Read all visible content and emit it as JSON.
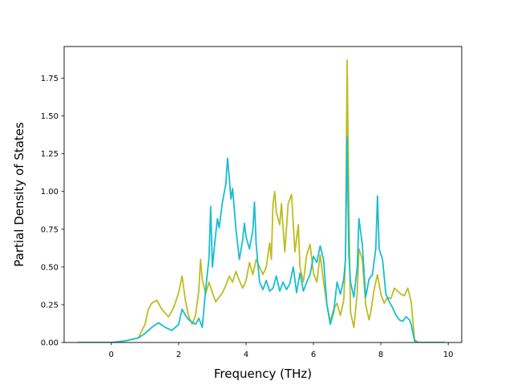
{
  "chart_data": {
    "type": "line",
    "title": "",
    "xlabel": "Frequency (THz)",
    "ylabel": "Partial Density of States",
    "xlim": [
      -1.4,
      10.4
    ],
    "ylim": [
      0,
      1.96
    ],
    "x_ticks": [
      0,
      2,
      4,
      6,
      8,
      10
    ],
    "x_tick_labels": [
      "0",
      "2",
      "4",
      "6",
      "8",
      "10"
    ],
    "y_ticks": [
      0.0,
      0.25,
      0.5,
      0.75,
      1.0,
      1.25,
      1.5,
      1.75
    ],
    "y_tick_labels": [
      "0.00",
      "0.25",
      "0.50",
      "0.75",
      "1.00",
      "1.25",
      "1.50",
      "1.75"
    ],
    "grid": false,
    "legend": "none",
    "series": [
      {
        "color": "#bcbd22",
        "points": [
          [
            -1.0,
            0
          ],
          [
            0.0,
            0
          ],
          [
            0.4,
            0.01
          ],
          [
            0.8,
            0.03
          ],
          [
            1.0,
            0.12
          ],
          [
            1.1,
            0.22
          ],
          [
            1.2,
            0.26
          ],
          [
            1.35,
            0.28
          ],
          [
            1.5,
            0.22
          ],
          [
            1.7,
            0.17
          ],
          [
            1.85,
            0.23
          ],
          [
            2.0,
            0.33
          ],
          [
            2.1,
            0.44
          ],
          [
            2.2,
            0.28
          ],
          [
            2.3,
            0.17
          ],
          [
            2.4,
            0.12
          ],
          [
            2.5,
            0.18
          ],
          [
            2.6,
            0.35
          ],
          [
            2.65,
            0.55
          ],
          [
            2.7,
            0.42
          ],
          [
            2.8,
            0.32
          ],
          [
            2.9,
            0.4
          ],
          [
            3.0,
            0.33
          ],
          [
            3.1,
            0.27
          ],
          [
            3.2,
            0.3
          ],
          [
            3.3,
            0.33
          ],
          [
            3.4,
            0.38
          ],
          [
            3.5,
            0.44
          ],
          [
            3.6,
            0.4
          ],
          [
            3.7,
            0.47
          ],
          [
            3.8,
            0.41
          ],
          [
            3.9,
            0.36
          ],
          [
            4.0,
            0.41
          ],
          [
            4.1,
            0.53
          ],
          [
            4.2,
            0.45
          ],
          [
            4.3,
            0.55
          ],
          [
            4.4,
            0.5
          ],
          [
            4.5,
            0.45
          ],
          [
            4.6,
            0.5
          ],
          [
            4.7,
            0.66
          ],
          [
            4.75,
            0.55
          ],
          [
            4.8,
            0.92
          ],
          [
            4.85,
            1.0
          ],
          [
            4.9,
            0.86
          ],
          [
            5.0,
            0.78
          ],
          [
            5.05,
            0.92
          ],
          [
            5.15,
            0.6
          ],
          [
            5.25,
            0.92
          ],
          [
            5.35,
            0.98
          ],
          [
            5.45,
            0.6
          ],
          [
            5.55,
            0.78
          ],
          [
            5.6,
            0.5
          ],
          [
            5.7,
            0.4
          ],
          [
            5.8,
            0.58
          ],
          [
            5.9,
            0.65
          ],
          [
            6.0,
            0.46
          ],
          [
            6.1,
            0.4
          ],
          [
            6.2,
            0.58
          ],
          [
            6.3,
            0.4
          ],
          [
            6.4,
            0.25
          ],
          [
            6.5,
            0.14
          ],
          [
            6.6,
            0.22
          ],
          [
            6.7,
            0.26
          ],
          [
            6.8,
            0.18
          ],
          [
            6.9,
            0.28
          ],
          [
            6.95,
            0.55
          ],
          [
            7.0,
            1.87
          ],
          [
            7.05,
            0.9
          ],
          [
            7.1,
            0.2
          ],
          [
            7.2,
            0.1
          ],
          [
            7.3,
            0.33
          ],
          [
            7.35,
            0.62
          ],
          [
            7.45,
            0.55
          ],
          [
            7.55,
            0.25
          ],
          [
            7.65,
            0.15
          ],
          [
            7.7,
            0.2
          ],
          [
            7.8,
            0.35
          ],
          [
            7.9,
            0.45
          ],
          [
            8.0,
            0.32
          ],
          [
            8.1,
            0.26
          ],
          [
            8.2,
            0.3
          ],
          [
            8.3,
            0.29
          ],
          [
            8.4,
            0.36
          ],
          [
            8.5,
            0.34
          ],
          [
            8.6,
            0.32
          ],
          [
            8.7,
            0.31
          ],
          [
            8.8,
            0.36
          ],
          [
            8.9,
            0.27
          ],
          [
            9.0,
            0.02
          ],
          [
            9.1,
            0.0
          ],
          [
            9.9,
            0.0
          ]
        ]
      },
      {
        "color": "#17becf",
        "points": [
          [
            -1.0,
            0
          ],
          [
            0.0,
            0
          ],
          [
            0.4,
            0.01
          ],
          [
            0.8,
            0.03
          ],
          [
            1.0,
            0.06
          ],
          [
            1.2,
            0.1
          ],
          [
            1.4,
            0.13
          ],
          [
            1.6,
            0.1
          ],
          [
            1.8,
            0.08
          ],
          [
            2.0,
            0.12
          ],
          [
            2.1,
            0.22
          ],
          [
            2.2,
            0.18
          ],
          [
            2.3,
            0.15
          ],
          [
            2.5,
            0.12
          ],
          [
            2.6,
            0.16
          ],
          [
            2.7,
            0.1
          ],
          [
            2.8,
            0.35
          ],
          [
            2.9,
            0.56
          ],
          [
            2.95,
            0.9
          ],
          [
            3.0,
            0.5
          ],
          [
            3.1,
            0.72
          ],
          [
            3.15,
            0.82
          ],
          [
            3.2,
            0.76
          ],
          [
            3.3,
            0.93
          ],
          [
            3.4,
            1.05
          ],
          [
            3.45,
            1.22
          ],
          [
            3.5,
            1.1
          ],
          [
            3.55,
            0.95
          ],
          [
            3.6,
            1.02
          ],
          [
            3.7,
            0.75
          ],
          [
            3.8,
            0.55
          ],
          [
            3.9,
            0.68
          ],
          [
            3.95,
            0.79
          ],
          [
            4.0,
            0.7
          ],
          [
            4.1,
            0.62
          ],
          [
            4.2,
            0.74
          ],
          [
            4.25,
            0.93
          ],
          [
            4.3,
            0.65
          ],
          [
            4.4,
            0.4
          ],
          [
            4.5,
            0.35
          ],
          [
            4.6,
            0.41
          ],
          [
            4.7,
            0.34
          ],
          [
            4.8,
            0.36
          ],
          [
            4.9,
            0.44
          ],
          [
            5.0,
            0.34
          ],
          [
            5.1,
            0.4
          ],
          [
            5.2,
            0.35
          ],
          [
            5.3,
            0.39
          ],
          [
            5.4,
            0.5
          ],
          [
            5.5,
            0.33
          ],
          [
            5.6,
            0.46
          ],
          [
            5.7,
            0.34
          ],
          [
            5.8,
            0.4
          ],
          [
            5.9,
            0.45
          ],
          [
            6.0,
            0.57
          ],
          [
            6.1,
            0.53
          ],
          [
            6.2,
            0.64
          ],
          [
            6.3,
            0.55
          ],
          [
            6.4,
            0.25
          ],
          [
            6.5,
            0.12
          ],
          [
            6.6,
            0.2
          ],
          [
            6.7,
            0.4
          ],
          [
            6.8,
            0.32
          ],
          [
            6.9,
            0.42
          ],
          [
            6.95,
            0.55
          ],
          [
            7.0,
            1.36
          ],
          [
            7.05,
            0.58
          ],
          [
            7.1,
            0.4
          ],
          [
            7.2,
            0.3
          ],
          [
            7.3,
            0.5
          ],
          [
            7.35,
            0.82
          ],
          [
            7.45,
            0.65
          ],
          [
            7.55,
            0.3
          ],
          [
            7.65,
            0.42
          ],
          [
            7.75,
            0.45
          ],
          [
            7.85,
            0.62
          ],
          [
            7.9,
            0.97
          ],
          [
            7.95,
            0.62
          ],
          [
            8.05,
            0.55
          ],
          [
            8.15,
            0.32
          ],
          [
            8.25,
            0.27
          ],
          [
            8.35,
            0.23
          ],
          [
            8.45,
            0.18
          ],
          [
            8.55,
            0.15
          ],
          [
            8.65,
            0.14
          ],
          [
            8.75,
            0.17
          ],
          [
            8.85,
            0.15
          ],
          [
            8.9,
            0.12
          ],
          [
            9.0,
            0.01
          ],
          [
            9.1,
            0.0
          ],
          [
            9.9,
            0.0
          ]
        ]
      }
    ]
  }
}
